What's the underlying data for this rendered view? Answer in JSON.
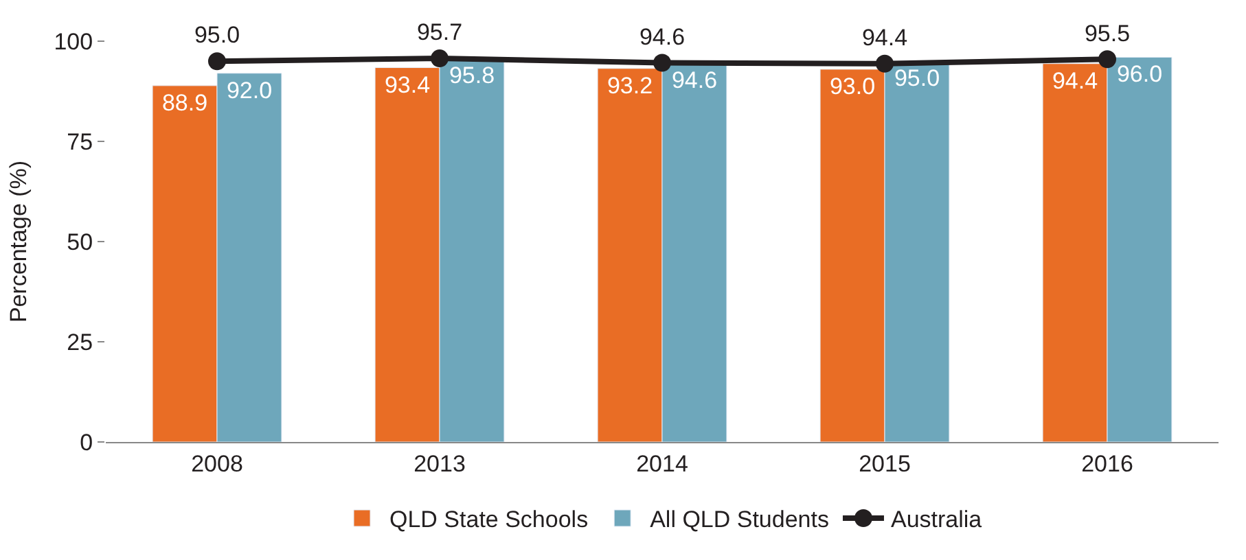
{
  "chart_data": {
    "type": "bar",
    "ylabel": "Percentage (%)",
    "categories": [
      "2008",
      "2013",
      "2014",
      "2015",
      "2016"
    ],
    "series": [
      {
        "name": "QLD State Schools",
        "color": "#e96d25",
        "values": [
          88.9,
          93.4,
          93.2,
          93.0,
          94.4
        ],
        "value_labels": [
          "88.9",
          "93.4",
          "93.2",
          "93.0",
          "94.4"
        ]
      },
      {
        "name": "All QLD Students",
        "color": "#6ea7bb",
        "values": [
          92.0,
          95.8,
          94.6,
          95.0,
          96.0
        ],
        "value_labels": [
          "92.0",
          "95.8",
          "94.6",
          "95.0",
          "96.0"
        ]
      },
      {
        "name": "Australia",
        "type": "line",
        "color": "#231f20",
        "marker": "circle",
        "values": [
          95.0,
          95.7,
          94.6,
          94.4,
          95.5
        ],
        "value_labels": [
          "95.0",
          "95.7",
          "94.6",
          "94.4",
          "95.5"
        ]
      }
    ],
    "ylim": [
      0,
      100
    ],
    "yticks": [
      0,
      25,
      50,
      75,
      100
    ],
    "legend": "bottom"
  }
}
